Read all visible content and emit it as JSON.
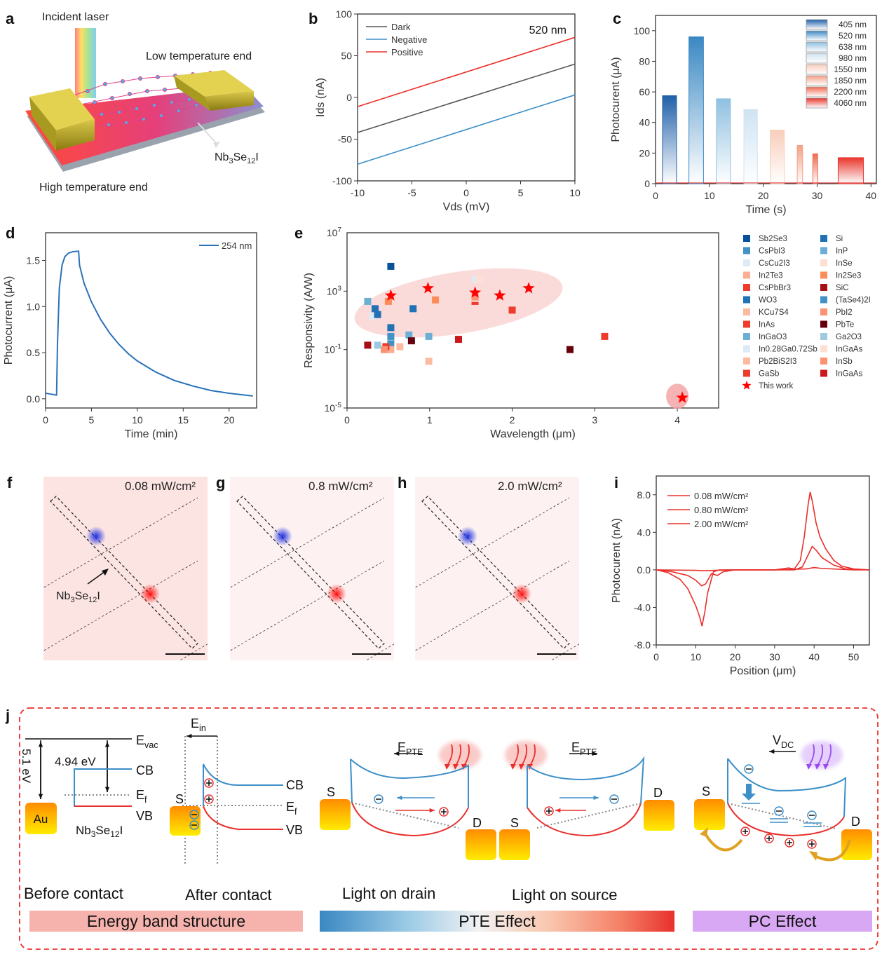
{
  "panels": {
    "a": {
      "label": "a",
      "incident_laser": "Incident laser",
      "low_temp": "Low temperature end",
      "high_temp": "High temperature end",
      "material": "Nb3Se12I"
    },
    "b": {
      "label": "b"
    },
    "c": {
      "label": "c"
    },
    "d": {
      "label": "d"
    },
    "e": {
      "label": "e"
    },
    "f": {
      "label": "f",
      "power": "0.08 mW/cm²",
      "material": "Nb3Se12I"
    },
    "g": {
      "label": "g",
      "power": "0.8 mW/cm²"
    },
    "h": {
      "label": "h",
      "power": "2.0 mW/cm²"
    },
    "i": {
      "label": "i"
    },
    "j": {
      "label": "j",
      "before": {
        "evac": "vac",
        "work_au": "5.1 eV",
        "work_nb": "4.94 eV",
        "cb": "CB",
        "ef": "f",
        "vb": "VB",
        "au": "Au",
        "material": "Nb3Se12I"
      },
      "after": {
        "ein": "in",
        "s": "S",
        "cb": "CB",
        "ef": "f",
        "vb": "VB"
      },
      "drain": {
        "epte": "PTE",
        "s": "S",
        "d": "D"
      },
      "source": {
        "epte": "PTE",
        "s": "S",
        "d": "D"
      },
      "pc": {
        "vdc": "DC",
        "s": "S",
        "d": "D"
      },
      "captions": [
        "Before contact",
        "After contact",
        "Light  on drain",
        "Light  on source"
      ],
      "bars": [
        "Energy band structure",
        "PTE Effect",
        "PC Effect"
      ],
      "colors": {
        "cb": "#3d8fc8",
        "vb": "#e8302c",
        "dash": "#e8302c",
        "pc": "#d8a8f4",
        "energy": "#f6b3ae"
      }
    }
  },
  "chart_data": [
    {
      "id": "b",
      "type": "line",
      "title": "520 nm",
      "xlabel": "Vds (mV)",
      "ylabel": "Ids (nA)",
      "xlim": [
        -10,
        10
      ],
      "ylim": [
        -100,
        100
      ],
      "xticks": [
        -10,
        -5,
        0,
        5,
        10
      ],
      "yticks": [
        -100,
        -50,
        0,
        50,
        100
      ],
      "legend": "top-left",
      "series": [
        {
          "name": "Dark",
          "color": "#555555",
          "x": [
            -10,
            10
          ],
          "y": [
            -42,
            40
          ]
        },
        {
          "name": "Negative",
          "color": "#3a8fc8",
          "x": [
            -10,
            10
          ],
          "y": [
            -80,
            3
          ]
        },
        {
          "name": "Positive",
          "color": "#e8302c",
          "x": [
            -10,
            10
          ],
          "y": [
            -11,
            72
          ]
        }
      ]
    },
    {
      "id": "c",
      "type": "bar",
      "xlabel": "Time (s)",
      "ylabel": "Photocurent (μA)",
      "xlim": [
        0,
        41
      ],
      "ylim": [
        0,
        110
      ],
      "xticks": [
        0,
        10,
        20,
        30,
        40
      ],
      "yticks": [
        0,
        20,
        40,
        60,
        80,
        100
      ],
      "legend": "top-right",
      "series": [
        {
          "name": "405 nm",
          "color": "#1f5fa8",
          "start": 1.3,
          "end": 3.9,
          "value": 57.5
        },
        {
          "name": "520 nm",
          "color": "#3a88c2",
          "start": 6.2,
          "end": 8.9,
          "value": 96
        },
        {
          "name": "638 nm",
          "color": "#8fc0e0",
          "start": 11.3,
          "end": 13.9,
          "value": 55.5
        },
        {
          "name": "980 nm",
          "color": "#cfe3f2",
          "start": 16.4,
          "end": 18.9,
          "value": 48.5
        },
        {
          "name": "1550 nm",
          "color": "#f8cdbb",
          "start": 21.3,
          "end": 23.9,
          "value": 35
        },
        {
          "name": "1850 nm",
          "color": "#f3a186",
          "start": 26.3,
          "end": 27.3,
          "value": 25
        },
        {
          "name": "2200 nm",
          "color": "#ee6a50",
          "start": 29.2,
          "end": 30.1,
          "value": 19.5
        },
        {
          "name": "4060 nm",
          "color": "#e8352c",
          "start": 33.9,
          "end": 38.6,
          "value": 17
        }
      ]
    },
    {
      "id": "d",
      "type": "line",
      "xlabel": "Time (min)",
      "ylabel": "Photocurrent (μA)",
      "xlim": [
        0,
        23
      ],
      "ylim": [
        -0.1,
        1.8
      ],
      "xticks": [
        0,
        5,
        10,
        15,
        20
      ],
      "yticks": [
        0.0,
        0.5,
        1.0,
        1.5
      ],
      "legend": "top-right",
      "series": [
        {
          "name": "254 nm",
          "color": "#2a72b8",
          "x": [
            0,
            1.2,
            1.3,
            1.5,
            1.8,
            2.1,
            2.5,
            3.0,
            3.6,
            3.7,
            4.2,
            5,
            6,
            7,
            8,
            9,
            10,
            12,
            14,
            16,
            18,
            20,
            22.6
          ],
          "y": [
            0.06,
            0.04,
            0.6,
            1.2,
            1.45,
            1.54,
            1.58,
            1.595,
            1.6,
            1.45,
            1.25,
            1.05,
            0.86,
            0.71,
            0.59,
            0.49,
            0.41,
            0.29,
            0.2,
            0.14,
            0.09,
            0.06,
            0.03
          ]
        }
      ]
    },
    {
      "id": "e",
      "type": "scatter",
      "xlabel": "Wavelength (μm)",
      "ylabel": "Responsivity (A/W)",
      "xlim": [
        0,
        4.5
      ],
      "ylim_log10": [
        -5,
        7
      ],
      "xticks": [
        0,
        1,
        2,
        3,
        4
      ],
      "yticks_log10": [
        -5,
        -1,
        3
      ],
      "ytick_labels": [
        "10-5",
        "10-1",
        "103",
        "107"
      ],
      "legend": "right",
      "series": [
        {
          "name": "Sb2Se3",
          "color": "#08519c",
          "points": [
            [
              0.53,
              4.7
            ]
          ]
        },
        {
          "name": "CsPbI3",
          "color": "#4292c6",
          "points": [
            [
              0.53,
              -0.6
            ]
          ]
        },
        {
          "name": "CsCu2I3",
          "color": "#deebf7",
          "points": [
            [
              0.31,
              1.3
            ]
          ]
        },
        {
          "name": "In2Te3",
          "color": "#fcae91",
          "points": [
            [
              0.53,
              -1.0
            ]
          ]
        },
        {
          "name": "CsPbBr3",
          "color": "#ef3b2c",
          "points": [
            [
              0.47,
              -0.8
            ]
          ]
        },
        {
          "name": "WO3",
          "color": "#2171b5",
          "points": [
            [
              0.34,
              1.8
            ],
            [
              0.37,
              1.4
            ]
          ]
        },
        {
          "name": "KCu7S4",
          "color": "#fcbba1",
          "points": [
            [
              0.64,
              -0.8
            ]
          ]
        },
        {
          "name": "InAs",
          "color": "#ef3b2c",
          "points": [
            [
              1.55,
              2.3
            ],
            [
              3.12,
              -0.1
            ]
          ]
        },
        {
          "name": "InGaO3",
          "color": "#6baed6",
          "points": [
            [
              0.25,
              2.3
            ]
          ]
        },
        {
          "name": "In0.28Ga0.72Sb",
          "color": "#deebf7",
          "points": [
            [
              1.55,
              3.8
            ]
          ]
        },
        {
          "name": "Pb2BiS2I3",
          "color": "#fcbba1",
          "points": [
            [
              0.99,
              -1.8
            ]
          ]
        },
        {
          "name": "GaSb",
          "color": "#ef3b2c",
          "points": [
            [
              2.0,
              1.7
            ]
          ]
        },
        {
          "name": "Si",
          "color": "#2171b5",
          "points": [
            [
              0.8,
              1.8
            ],
            [
              0.53,
              0.5
            ]
          ]
        },
        {
          "name": "InP",
          "color": "#6baed6",
          "points": [
            [
              0.99,
              -0.1
            ],
            [
              0.75,
              0.0
            ]
          ]
        },
        {
          "name": "InSe",
          "color": "#fee0d2",
          "points": [
            [
              1.6,
              3.8
            ]
          ]
        },
        {
          "name": "In2Se3",
          "color": "#fc8d59",
          "points": [
            [
              0.5,
              2.3
            ],
            [
              1.07,
              2.4
            ]
          ]
        },
        {
          "name": "SiC",
          "color": "#a50f15",
          "points": [
            [
              0.25,
              -0.7
            ]
          ]
        },
        {
          "name": "(TaSe4)2I",
          "color": "#4292c6",
          "points": [
            [
              0.53,
              -0.1
            ]
          ]
        },
        {
          "name": "PbI2",
          "color": "#fc9272",
          "points": [
            [
              0.45,
              -1.0
            ]
          ]
        },
        {
          "name": "PbTe",
          "color": "#67000d",
          "points": [
            [
              0.78,
              -0.4
            ],
            [
              2.7,
              -1.0
            ]
          ]
        },
        {
          "name": "Ga2O3",
          "color": "#9ecae1",
          "points": [
            [
              0.37,
              -0.7
            ]
          ]
        },
        {
          "name": "InGaAs",
          "color": "#fee0d2",
          "points": [
            [
              1.55,
              2.5
            ]
          ]
        },
        {
          "name": "InSb",
          "color": "#fc9272",
          "points": [
            [
              1.55,
              2.6
            ]
          ]
        },
        {
          "name": "InGaAs",
          "color": "#cb181d",
          "points": [
            [
              1.35,
              -0.3
            ]
          ]
        },
        {
          "name": "This work",
          "color": "#ff0000",
          "marker": "star",
          "points": [
            [
              0.53,
              2.7
            ],
            [
              0.98,
              3.2
            ],
            [
              1.55,
              2.9
            ],
            [
              1.85,
              2.7
            ],
            [
              2.2,
              3.2
            ],
            [
              4.06,
              -4.3
            ]
          ]
        }
      ]
    },
    {
      "id": "i",
      "type": "line",
      "xlabel": "Position (μm)",
      "ylabel": "Photocurent (nA)",
      "xlim": [
        0,
        54
      ],
      "ylim": [
        -8,
        10
      ],
      "xticks": [
        0,
        10,
        20,
        30,
        40,
        50
      ],
      "yticks": [
        -8.0,
        -4.0,
        0.0,
        4.0,
        8.0
      ],
      "ytick_labels": [
        "-8.0",
        "-4.0",
        "0.0",
        "4.0",
        "8.0"
      ],
      "legend": "top-left",
      "series": [
        {
          "name": "0.08 mW/cm²",
          "color": "#e8302c",
          "x": [
            0,
            10,
            12,
            15,
            20,
            30,
            38,
            40,
            42,
            50,
            54
          ],
          "y": [
            0,
            -0.05,
            -0.1,
            -0.05,
            0,
            0,
            0.1,
            0.25,
            0.15,
            0,
            0
          ]
        },
        {
          "name": "0.80 mW/cm²",
          "color": "#e8302c",
          "x": [
            0,
            4,
            8,
            10,
            11.5,
            12.5,
            14,
            15.5,
            17,
            20,
            35,
            37,
            38.5,
            39.5,
            40.5,
            42,
            45,
            48,
            54
          ],
          "y": [
            0,
            -0.2,
            -0.6,
            -1.1,
            -1.7,
            -1.5,
            -0.4,
            -0.6,
            -0.2,
            0,
            0,
            0.3,
            1.6,
            2.5,
            2.1,
            1.3,
            0.5,
            0.1,
            0
          ]
        },
        {
          "name": "2.00 mW/cm²",
          "color": "#e8302c",
          "x": [
            0,
            3,
            6,
            8,
            10,
            11,
            11.6,
            12.3,
            13,
            14.5,
            16,
            20,
            30,
            33.5,
            35,
            36.5,
            37.5,
            38.5,
            39,
            39.6,
            40.5,
            41.5,
            43,
            45,
            47,
            50,
            54
          ],
          "y": [
            0,
            -0.3,
            -1.0,
            -2.0,
            -3.8,
            -5.0,
            -6.0,
            -4.5,
            -2.5,
            -0.2,
            0,
            0,
            0,
            0.2,
            0.1,
            1.0,
            3.5,
            7.0,
            8.3,
            7.2,
            5.0,
            3.5,
            2.2,
            1.0,
            0.4,
            0.1,
            0
          ]
        }
      ]
    }
  ]
}
